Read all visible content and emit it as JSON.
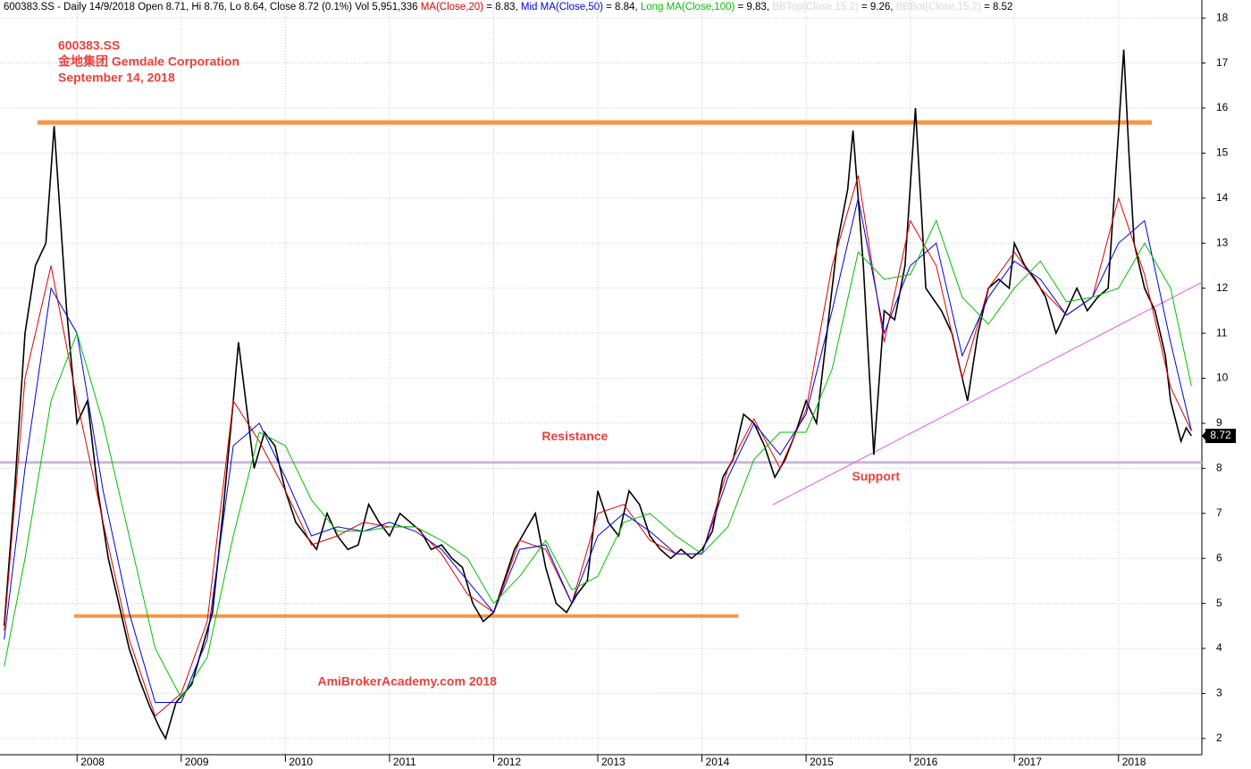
{
  "chart_data": {
    "type": "line",
    "header": [
      {
        "text": "600383.SS - Daily 14/9/2018 Open 8.71, Hi 8.76, Lo 8.64, Close 8.72 (0.1%) Vol 5,951,336 ",
        "color": "#000000"
      },
      {
        "text": "MA(Close,20)",
        "color": "#e00000"
      },
      {
        "text": " = 8.83, ",
        "color": "#000000"
      },
      {
        "text": "Mid MA(Close,50)",
        "color": "#0000e0"
      },
      {
        "text": " = 8.84, ",
        "color": "#000000"
      },
      {
        "text": "Long MA(Close,100)",
        "color": "#00c000"
      },
      {
        "text": " = 9.83, ",
        "color": "#000000"
      },
      {
        "text": "BBTop(Close,15,2)",
        "color": "#d8d8d8"
      },
      {
        "text": " = 9.26, ",
        "color": "#000000"
      },
      {
        "text": "BBBot(Close,15,2)",
        "color": "#d8d8d8"
      },
      {
        "text": " = 8.52",
        "color": "#000000"
      }
    ],
    "title_lines": [
      "600383.SS",
      "金地集团 Gemdale Corporation",
      "September 14, 2018"
    ],
    "annotations": [
      {
        "text": "Resistance",
        "x": 2012.78,
        "y": 8.7
      },
      {
        "text": "Support",
        "x": 2015.67,
        "y": 7.8
      },
      {
        "text": "AmiBrokerAcademy.com   2018",
        "x": 2011.17,
        "y": 3.25
      }
    ],
    "last_price": 8.72,
    "xlim": [
      2007.26,
      2018.8
    ],
    "ylim": [
      1.64,
      18.4
    ],
    "xticks": [
      2008,
      2009,
      2010,
      2011,
      2012,
      2013,
      2014,
      2015,
      2016,
      2017,
      2018
    ],
    "yticks": [
      2,
      3,
      4,
      5,
      6,
      7,
      8,
      9,
      10,
      11,
      12,
      13,
      14,
      15,
      16,
      17,
      18
    ],
    "grid": true,
    "levels": [
      {
        "x": [
          2007.62,
          2018.32
        ],
        "values": [
          15.68,
          15.68
        ],
        "color": "#f79646"
      },
      {
        "x": [
          2007.97,
          2014.35
        ],
        "values": [
          4.72,
          4.72
        ],
        "color": "#f79646"
      },
      {
        "x": [
          2007.26,
          2018.8
        ],
        "values": [
          8.13,
          8.13
        ],
        "color": "#c8b8d8"
      },
      {
        "x": [
          2014.68,
          2018.8
        ],
        "values": [
          7.19,
          12.13
        ],
        "color": "#e070e8"
      }
    ],
    "series": [
      {
        "name": "Close",
        "color": "#000000",
        "x": [
          2007.3,
          2007.4,
          2007.5,
          2007.6,
          2007.7,
          2007.78,
          2007.9,
          2008.0,
          2008.1,
          2008.2,
          2008.3,
          2008.4,
          2008.5,
          2008.6,
          2008.7,
          2008.8,
          2008.85,
          2008.95,
          2009.1,
          2009.2,
          2009.3,
          2009.4,
          2009.5,
          2009.55,
          2009.7,
          2009.8,
          2009.9,
          2010.0,
          2010.1,
          2010.2,
          2010.3,
          2010.4,
          2010.5,
          2010.6,
          2010.7,
          2010.8,
          2010.9,
          2011.0,
          2011.1,
          2011.2,
          2011.3,
          2011.4,
          2011.5,
          2011.6,
          2011.7,
          2011.8,
          2011.9,
          2012.0,
          2012.1,
          2012.2,
          2012.3,
          2012.4,
          2012.5,
          2012.6,
          2012.7,
          2012.8,
          2012.9,
          2013.0,
          2013.1,
          2013.2,
          2013.3,
          2013.4,
          2013.5,
          2013.6,
          2013.7,
          2013.8,
          2013.9,
          2014.0,
          2014.1,
          2014.2,
          2014.3,
          2014.4,
          2014.5,
          2014.6,
          2014.7,
          2014.8,
          2014.9,
          2015.0,
          2015.1,
          2015.2,
          2015.3,
          2015.4,
          2015.45,
          2015.55,
          2015.65,
          2015.75,
          2015.85,
          2015.95,
          2016.05,
          2016.1,
          2016.15,
          2016.3,
          2016.4,
          2016.5,
          2016.55,
          2016.65,
          2016.75,
          2016.85,
          2016.95,
          2017.0,
          2017.1,
          2017.2,
          2017.3,
          2017.4,
          2017.5,
          2017.6,
          2017.7,
          2017.8,
          2017.9,
          2018.0,
          2018.05,
          2018.1,
          2018.15,
          2018.25,
          2018.35,
          2018.45,
          2018.5,
          2018.6,
          2018.65,
          2018.7
        ],
        "values": [
          4.5,
          7.5,
          11,
          12.5,
          13,
          15.6,
          11.5,
          9,
          9.5,
          7.5,
          6,
          5,
          4,
          3.3,
          2.7,
          2.2,
          2.0,
          2.8,
          3.2,
          4,
          4.8,
          7,
          9.5,
          10.8,
          8,
          8.8,
          8.5,
          7.5,
          6.8,
          6.5,
          6.2,
          7,
          6.5,
          6.2,
          6.3,
          7.2,
          6.8,
          6.5,
          7,
          6.8,
          6.6,
          6.2,
          6.3,
          6,
          5.8,
          5,
          4.6,
          4.8,
          5.5,
          6.2,
          6.6,
          7.0,
          5.8,
          5.0,
          4.8,
          5.2,
          5.5,
          7.5,
          6.8,
          6.5,
          7.5,
          7.2,
          6.5,
          6.2,
          6.0,
          6.2,
          6.0,
          6.2,
          6.6,
          7.8,
          8.2,
          9.2,
          9.0,
          8.5,
          7.8,
          8.2,
          8.8,
          9.5,
          9.0,
          11,
          13,
          14.2,
          15.5,
          12.5,
          8.3,
          11.5,
          11.3,
          12.5,
          16.0,
          14,
          12,
          11.5,
          11,
          10,
          9.5,
          11,
          12,
          12.2,
          12,
          13,
          12.5,
          12.2,
          11.8,
          11,
          11.5,
          12,
          11.5,
          11.8,
          12,
          15.5,
          17.3,
          15,
          13,
          12,
          11.5,
          10.5,
          9.5,
          8.6,
          8.9,
          8.72
        ]
      },
      {
        "name": "MA(Close,20)",
        "color": "#e00000",
        "x": [
          2007.3,
          2007.5,
          2007.75,
          2008.0,
          2008.25,
          2008.5,
          2008.75,
          2009.0,
          2009.25,
          2009.5,
          2009.75,
          2010.0,
          2010.25,
          2010.5,
          2010.75,
          2011.0,
          2011.25,
          2011.5,
          2011.75,
          2012.0,
          2012.25,
          2012.5,
          2012.75,
          2013.0,
          2013.25,
          2013.5,
          2013.75,
          2014.0,
          2014.25,
          2014.5,
          2014.75,
          2015.0,
          2015.25,
          2015.5,
          2015.75,
          2016.0,
          2016.25,
          2016.5,
          2016.75,
          2017.0,
          2017.25,
          2017.5,
          2017.75,
          2018.0,
          2018.25,
          2018.5,
          2018.7
        ],
        "values": [
          4.4,
          10,
          12.5,
          9.5,
          6.8,
          4.2,
          2.5,
          3.0,
          4.6,
          9.5,
          8.6,
          7.5,
          6.3,
          6.5,
          6.8,
          6.7,
          6.7,
          6.1,
          5.2,
          4.8,
          6.4,
          6.2,
          5.0,
          7.0,
          7.2,
          6.4,
          6.1,
          6.1,
          8.0,
          9.1,
          8.0,
          9.3,
          12.5,
          14.5,
          10.8,
          13.5,
          12.5,
          10.0,
          12.0,
          12.8,
          12.0,
          11.4,
          11.8,
          14.0,
          12.3,
          9.8,
          8.83
        ]
      },
      {
        "name": "Mid MA(Close,50)",
        "color": "#0000e0",
        "x": [
          2007.3,
          2007.5,
          2007.75,
          2008.0,
          2008.25,
          2008.5,
          2008.75,
          2009.0,
          2009.25,
          2009.5,
          2009.75,
          2010.0,
          2010.25,
          2010.5,
          2010.75,
          2011.0,
          2011.25,
          2011.5,
          2011.75,
          2012.0,
          2012.25,
          2012.5,
          2012.75,
          2013.0,
          2013.25,
          2013.5,
          2013.75,
          2014.0,
          2014.25,
          2014.5,
          2014.75,
          2015.0,
          2015.25,
          2015.5,
          2015.75,
          2016.0,
          2016.25,
          2016.5,
          2016.75,
          2017.0,
          2017.25,
          2017.5,
          2017.75,
          2018.0,
          2018.25,
          2018.5,
          2018.7
        ],
        "values": [
          4.2,
          8,
          12,
          11,
          7.5,
          4.8,
          2.8,
          2.8,
          4.2,
          8.5,
          9,
          7.8,
          6.5,
          6.7,
          6.6,
          6.8,
          6.6,
          6.2,
          5.5,
          4.8,
          6.2,
          6.3,
          5.0,
          6.5,
          7.0,
          6.6,
          6.1,
          6.1,
          7.8,
          9.0,
          8.3,
          9.2,
          11.5,
          14.0,
          11.0,
          12.5,
          13.0,
          10.5,
          11.8,
          12.6,
          12.2,
          11.4,
          11.8,
          13.0,
          13.5,
          10.8,
          8.84
        ]
      },
      {
        "name": "Long MA(Close,100)",
        "color": "#00c000",
        "x": [
          2007.3,
          2007.5,
          2007.75,
          2008.0,
          2008.25,
          2008.5,
          2008.75,
          2009.0,
          2009.25,
          2009.5,
          2009.75,
          2010.0,
          2010.25,
          2010.5,
          2010.75,
          2011.0,
          2011.25,
          2011.5,
          2011.75,
          2012.0,
          2012.25,
          2012.5,
          2012.75,
          2013.0,
          2013.25,
          2013.5,
          2013.75,
          2014.0,
          2014.25,
          2014.5,
          2014.75,
          2015.0,
          2015.25,
          2015.5,
          2015.75,
          2016.0,
          2016.25,
          2016.5,
          2016.75,
          2017.0,
          2017.25,
          2017.5,
          2017.75,
          2018.0,
          2018.25,
          2018.5,
          2018.7
        ],
        "values": [
          3.6,
          6,
          9.5,
          11,
          9,
          6.5,
          4,
          2.9,
          3.8,
          6.5,
          8.8,
          8.5,
          7.3,
          6.6,
          6.6,
          6.7,
          6.7,
          6.4,
          6.0,
          5.0,
          5.6,
          6.4,
          5.3,
          5.6,
          6.8,
          7.0,
          6.5,
          6.1,
          6.7,
          8.2,
          8.8,
          8.8,
          10.2,
          12.8,
          12.2,
          12.3,
          13.5,
          11.8,
          11.2,
          12.0,
          12.6,
          11.7,
          11.8,
          12.0,
          13.0,
          12.0,
          9.83
        ]
      }
    ]
  }
}
